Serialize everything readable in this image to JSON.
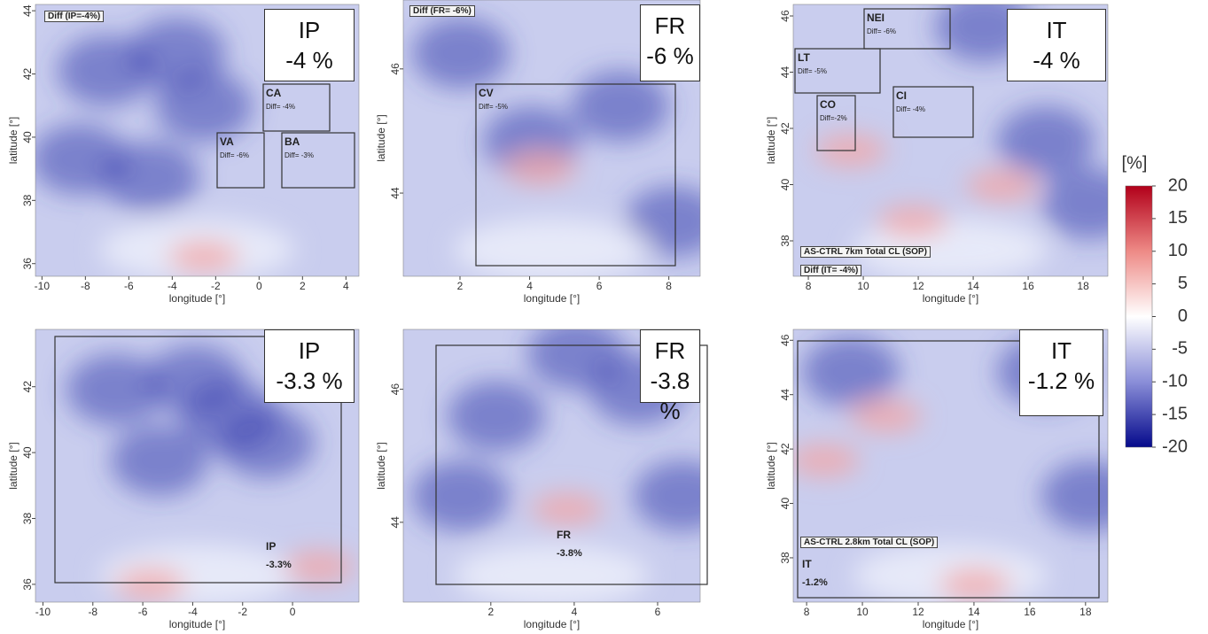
{
  "panels": [
    {
      "region": "IP",
      "value": "-4 %",
      "xlabel": "longitude [°]",
      "ylabel": "latitude [°]",
      "xlim": [
        -10.3,
        4.6
      ],
      "ylim": [
        35.6,
        44.2
      ],
      "xticks": [
        -10,
        -8,
        -6,
        -4,
        -2,
        0,
        2,
        4
      ],
      "yticks": [
        36,
        38,
        40,
        42,
        44
      ],
      "annotations": [
        "Diff (IP=-4%)"
      ],
      "subregions": [
        {
          "name": "CA",
          "diff": "Diff= -4%"
        },
        {
          "name": "VA",
          "diff": "Diff= -6%"
        },
        {
          "name": "BA",
          "diff": "Diff= -3%"
        }
      ]
    },
    {
      "region": "FR",
      "value": "-6 %",
      "xlabel": "longitude [°]",
      "ylabel": "latitude [°]",
      "xlim": [
        0.37,
        8.9
      ],
      "ylim": [
        42.66,
        47.11
      ],
      "xticks": [
        2,
        4,
        6,
        8
      ],
      "yticks": [
        44,
        46
      ],
      "annotations": [
        "Diff (FR= -6%)"
      ],
      "subregions": [
        {
          "name": "CV",
          "diff": "Diff= -5%"
        }
      ]
    },
    {
      "region": "IT",
      "value": "-4 %",
      "xlabel": "longitude [°]",
      "ylabel": "latitude [°]",
      "xlim": [
        7.45,
        18.9
      ],
      "ylim": [
        36.74,
        46.41
      ],
      "xticks": [
        8,
        10,
        12,
        14,
        16,
        18
      ],
      "yticks": [
        38,
        40,
        42,
        44,
        46
      ],
      "annotations": [
        "AS-CTRL 7km Total CL (SOP)",
        "Diff (IT= -4%)"
      ],
      "subregions": [
        {
          "name": "NEI",
          "diff": "Diff= -6%"
        },
        {
          "name": "LT",
          "diff": "Diff= -5%"
        },
        {
          "name": "CO",
          "diff": "Diff=-2%"
        },
        {
          "name": "CI",
          "diff": "Diff= -4%"
        }
      ]
    },
    {
      "region": "IP",
      "value": "-3.3 %",
      "xlabel": "longitude [°]",
      "ylabel": "latitude [°]",
      "xlim": [
        -10.3,
        2.66
      ],
      "ylim": [
        35.46,
        43.74
      ],
      "xticks": [
        -10,
        -8,
        -6,
        -4,
        -2,
        0
      ],
      "yticks": [
        36,
        38,
        40,
        42
      ],
      "annotations": [],
      "subregions": [
        {
          "name": "IP",
          "diff": "-3.3%"
        }
      ]
    },
    {
      "region": "FR",
      "value": "-3.8 %",
      "xlabel": "longitude [°]",
      "ylabel": "latitude [°]",
      "xlim": [
        -0.1,
        7.02
      ],
      "ylim": [
        42.8,
        46.9
      ],
      "xticks": [
        2,
        4,
        6
      ],
      "yticks": [
        44,
        46
      ],
      "annotations": [],
      "subregions": [
        {
          "name": "FR",
          "diff": "-3.8%"
        }
      ]
    },
    {
      "region": "IT",
      "value": "-1.2 %",
      "xlabel": "longitude [°]",
      "ylabel": "latitude [°]",
      "xlim": [
        7.52,
        18.8
      ],
      "ylim": [
        36.37,
        46.4
      ],
      "xticks": [
        8,
        10,
        12,
        14,
        16,
        18
      ],
      "yticks": [
        38,
        40,
        42,
        44,
        46
      ],
      "annotations": [
        "AS-CTRL 2.8km Total CL (SOP)"
      ],
      "subregions": [
        {
          "name": "IT",
          "diff": "-1.2%"
        }
      ]
    }
  ],
  "colorbar": {
    "label": "[%]",
    "lim": [
      -20,
      20
    ],
    "ticks": [
      20,
      15,
      10,
      5,
      0,
      -5,
      -10,
      -15,
      -20
    ]
  }
}
